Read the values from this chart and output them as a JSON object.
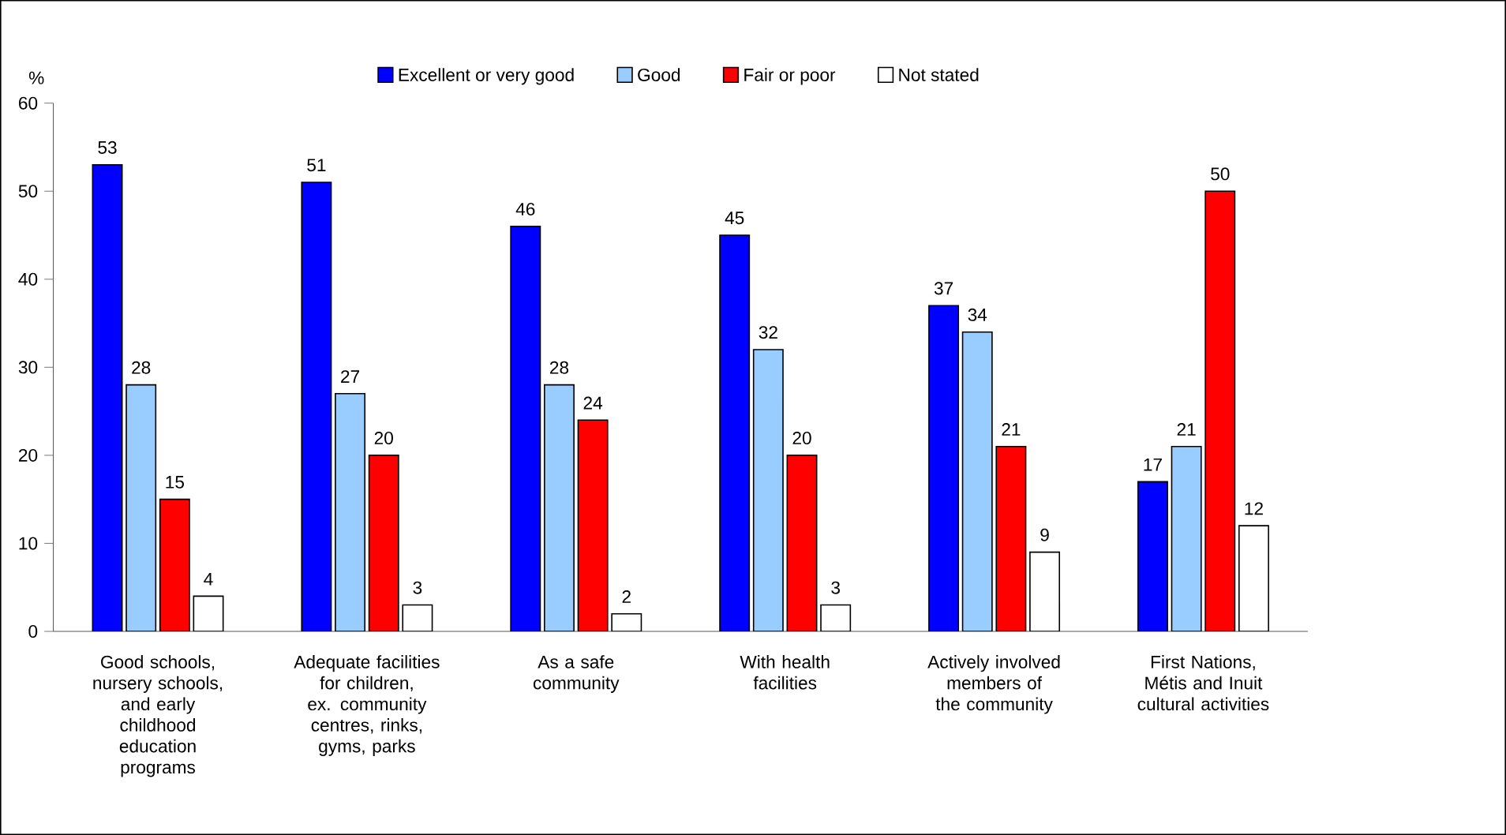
{
  "chart_data": {
    "type": "bar",
    "ylabel": "%",
    "categories": [
      "Good schools, nursery schools, and early childhood education programs",
      "Adequate facilities for children, ex. community centres, rinks, gyms, parks",
      "As a safe community",
      "With health facilities",
      "Actively involved members of the community",
      "First Nations, Métis and Inuit cultural activities"
    ],
    "series": [
      {
        "name": "Excellent or very good",
        "color": "#0000ff",
        "values": [
          53,
          51,
          46,
          45,
          37,
          17
        ]
      },
      {
        "name": "Good",
        "color": "#99ccff",
        "values": [
          28,
          27,
          28,
          32,
          34,
          21
        ]
      },
      {
        "name": "Fair or poor",
        "color": "#ff0000",
        "values": [
          15,
          20,
          24,
          20,
          21,
          50
        ]
      },
      {
        "name": "Not stated",
        "color": "#ffffff",
        "values": [
          4,
          3,
          2,
          3,
          9,
          12
        ]
      }
    ],
    "ylim": [
      0,
      60
    ],
    "yticks": [
      0,
      10,
      20,
      30,
      40,
      50,
      60
    ],
    "grid": false,
    "legend": "top",
    "data_labels": true
  }
}
